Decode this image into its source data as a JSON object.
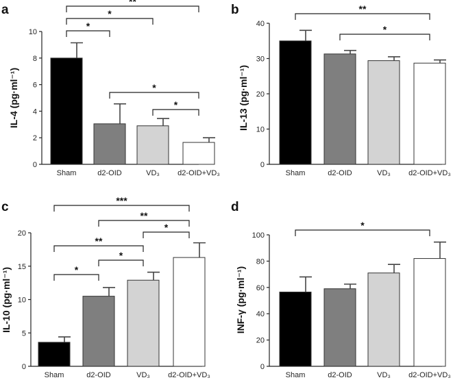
{
  "chart_data": [
    {
      "type": "bar",
      "panel": "a",
      "ylabel": "IL-4 (pg·ml⁻¹)",
      "ylim": [
        0,
        10
      ],
      "yticks": [
        0,
        2,
        4,
        6,
        8,
        10
      ],
      "categories": [
        "Sham",
        "d2-OID",
        "VD₃",
        "d2-OID+VD₃"
      ],
      "values": [
        8.0,
        3.05,
        2.9,
        1.65
      ],
      "errors": [
        1.15,
        1.5,
        0.55,
        0.35
      ],
      "colors": [
        "#000000",
        "#7f7f7f",
        "#d3d3d3",
        "#ffffff"
      ],
      "significance": [
        {
          "from": 0,
          "to": 3,
          "label": "**"
        },
        {
          "from": 0,
          "to": 2,
          "label": "*"
        },
        {
          "from": 0,
          "to": 1,
          "label": "*"
        },
        {
          "from": 1,
          "to": 3,
          "label": "*"
        },
        {
          "from": 2,
          "to": 3,
          "label": "*"
        }
      ]
    },
    {
      "type": "bar",
      "panel": "b",
      "ylabel": "IL-13 (pg·ml⁻¹)",
      "ylim": [
        0,
        40
      ],
      "yticks": [
        0,
        10,
        20,
        30,
        40
      ],
      "categories": [
        "Sham",
        "d2-OID",
        "VD₃",
        "d2-OID+VD₃"
      ],
      "values": [
        35.0,
        31.3,
        29.4,
        28.7
      ],
      "errors": [
        3.0,
        1.0,
        1.1,
        0.9
      ],
      "colors": [
        "#000000",
        "#7f7f7f",
        "#d3d3d3",
        "#ffffff"
      ],
      "significance": [
        {
          "from": 0,
          "to": 3,
          "label": "**"
        },
        {
          "from": 1,
          "to": 3,
          "label": "*"
        }
      ]
    },
    {
      "type": "bar",
      "panel": "c",
      "ylabel": "IL-10 (pg·ml⁻¹)",
      "ylim": [
        0,
        20
      ],
      "yticks": [
        0,
        5,
        10,
        15,
        20
      ],
      "categories": [
        "Sham",
        "d2-OID",
        "VD₃",
        "d2-OID+VD₃"
      ],
      "values": [
        3.6,
        10.5,
        12.9,
        16.3
      ],
      "errors": [
        0.8,
        1.3,
        1.2,
        2.2
      ],
      "colors": [
        "#000000",
        "#7f7f7f",
        "#d3d3d3",
        "#ffffff"
      ],
      "significance": [
        {
          "from": 0,
          "to": 3,
          "label": "***"
        },
        {
          "from": 1,
          "to": 3,
          "label": "**"
        },
        {
          "from": 2,
          "to": 3,
          "label": "*"
        },
        {
          "from": 0,
          "to": 2,
          "label": "**"
        },
        {
          "from": 1,
          "to": 2,
          "label": "*"
        },
        {
          "from": 0,
          "to": 1,
          "label": "*"
        }
      ]
    },
    {
      "type": "bar",
      "panel": "d",
      "ylabel": "INF-γ (pg·ml⁻¹)",
      "ylim": [
        0,
        100
      ],
      "yticks": [
        0,
        20,
        40,
        60,
        80,
        100
      ],
      "categories": [
        "Sham",
        "d2-OID",
        "VD₃",
        "d2-OID+VD₃"
      ],
      "values": [
        56.5,
        59.0,
        71.0,
        82.0
      ],
      "errors": [
        11.5,
        3.5,
        6.5,
        12.5
      ],
      "colors": [
        "#000000",
        "#7f7f7f",
        "#d3d3d3",
        "#ffffff"
      ],
      "significance": [
        {
          "from": 0,
          "to": 3,
          "label": "*"
        }
      ]
    }
  ]
}
